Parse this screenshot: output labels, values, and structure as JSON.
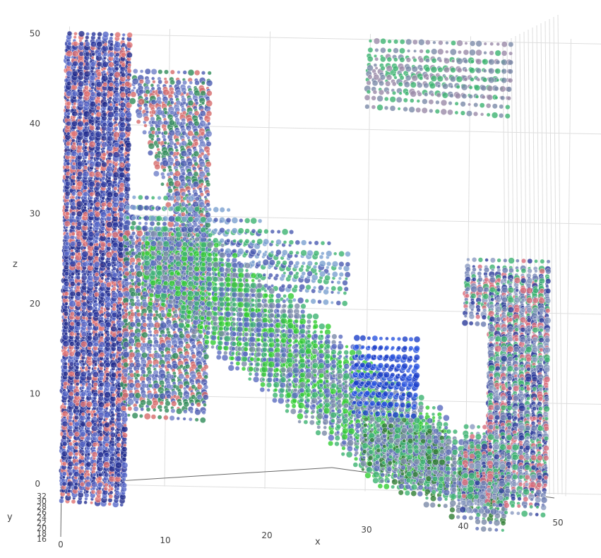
{
  "chart_data": {
    "type": "scatter3d",
    "title": "",
    "axes": {
      "x": {
        "label": "x",
        "range": [
          0,
          50
        ],
        "ticks": [
          "0",
          "10",
          "20",
          "30",
          "40",
          "50"
        ]
      },
      "y": {
        "label": "y",
        "range": [
          16,
          32
        ],
        "ticks": [
          "16",
          "18",
          "20",
          "22",
          "24",
          "26",
          "28",
          "30",
          "32"
        ]
      },
      "z": {
        "label": "z",
        "range": [
          0,
          50
        ],
        "ticks": [
          "0",
          "10",
          "20",
          "30",
          "40",
          "50"
        ]
      }
    },
    "grid": true,
    "legend": "none",
    "point_color_gradient": [
      "#00008b",
      "#4169e1",
      "#6ca0dc",
      "#9aa6b4",
      "#3cb371",
      "#32cd32",
      "#ff6b6b",
      "#cd5c5c",
      "#8b0000"
    ],
    "clusters": [
      {
        "name": "left-column",
        "x": [
          0,
          6
        ],
        "z": [
          0,
          50
        ],
        "y_slices": 6,
        "colors": [
          "#1f2a8c",
          "#5566c8",
          "#e07070",
          "#2c3aa0"
        ]
      },
      {
        "name": "left-fan",
        "x": [
          6,
          14
        ],
        "z": [
          10,
          46
        ],
        "y_slices": 4,
        "colors": [
          "#4a5ab0",
          "#6f7fc8",
          "#2e8b57",
          "#d66a6a"
        ]
      },
      {
        "name": "upper-ridge",
        "x": [
          6,
          28
        ],
        "z": [
          24,
          32
        ],
        "y_slices": 3,
        "colors": [
          "#4a5ab0",
          "#3cb371",
          "#7aa0d0"
        ]
      },
      {
        "name": "diagonal-band",
        "x": [
          8,
          38
        ],
        "z": [
          4,
          28
        ],
        "y_slices": 6,
        "colors": [
          "#3cb371",
          "#5a6bbf",
          "#7a8aa8",
          "#32cd32"
        ]
      },
      {
        "name": "blue-block",
        "x": [
          29,
          35
        ],
        "z": [
          12,
          17
        ],
        "y_slices": 4,
        "colors": [
          "#1b3ec8",
          "#2a55e0"
        ]
      },
      {
        "name": "bottom-curve",
        "x": [
          30,
          44
        ],
        "z": [
          0,
          8
        ],
        "y_slices": 6,
        "colors": [
          "#2e7d32",
          "#3cb371",
          "#7a8aa8",
          "#5c6db5"
        ]
      },
      {
        "name": "right-tower",
        "x": [
          40,
          48
        ],
        "z": [
          2,
          26
        ],
        "y_slices": 6,
        "colors": [
          "#6a7ab0",
          "#d96b7a",
          "#2a3a9a",
          "#3cb371",
          "#8a9ac0"
        ]
      },
      {
        "name": "top-slab",
        "x": [
          30,
          44
        ],
        "z": [
          46,
          50
        ],
        "y_slices": 3,
        "colors": [
          "#7a8aa8",
          "#3cb371",
          "#9a8aa8"
        ]
      }
    ]
  }
}
